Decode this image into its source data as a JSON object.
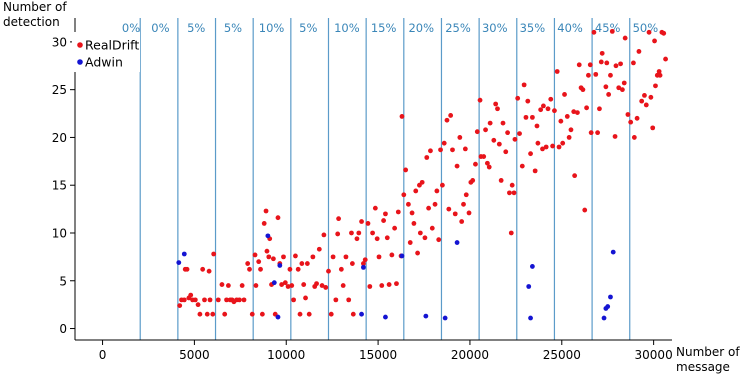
{
  "chart_data": {
    "type": "scatter",
    "xlabel": [
      "Number of",
      "message"
    ],
    "ylabel": [
      "Number of",
      "detection"
    ],
    "xlim": [
      -1500,
      31000
    ],
    "ylim": [
      -1.2,
      32.5
    ],
    "xticks": [
      0,
      5000,
      10000,
      15000,
      20000,
      25000,
      30000
    ],
    "xtick_labels": [
      "0",
      "5000",
      "10000",
      "15000",
      "20000",
      "25000",
      "30000"
    ],
    "yticks": [
      0,
      5,
      10,
      15,
      20,
      25,
      30
    ],
    "ytick_labels": [
      "0",
      "5",
      "10",
      "15",
      "20",
      "25",
      "30"
    ],
    "grid": false,
    "legend_position": "top-left",
    "colors": {
      "region_line": "#5b9bc9",
      "region_label": "#3a86b8",
      "axis": "#000000"
    },
    "regions": {
      "boundaries": [
        2050,
        4100,
        6150,
        8200,
        10250,
        12300,
        14350,
        16400,
        18450,
        20500,
        22550,
        24600,
        26650,
        28700
      ],
      "labels": [
        "0%",
        "0%",
        "5%",
        "5%",
        "10%",
        "5%",
        "10%",
        "15%",
        "20%",
        "25%",
        "30%",
        "35%",
        "40%",
        "45%",
        "50%"
      ],
      "label_x": [
        1550,
        3150,
        5100,
        7100,
        9200,
        11200,
        13300,
        15300,
        17350,
        19350,
        21350,
        23400,
        25450,
        27500,
        29550
      ]
    },
    "series": [
      {
        "name": "RealDrift",
        "color": "#e8141b",
        "points": [
          [
            4200,
            2.4
          ],
          [
            4300,
            3
          ],
          [
            4450,
            3
          ],
          [
            4500,
            6.2
          ],
          [
            4600,
            6.2
          ],
          [
            4700,
            3.2
          ],
          [
            4800,
            3.5
          ],
          [
            4900,
            3
          ],
          [
            5050,
            3
          ],
          [
            5200,
            2.5
          ],
          [
            5300,
            1.5
          ],
          [
            5450,
            6.2
          ],
          [
            5550,
            3
          ],
          [
            5700,
            1.5
          ],
          [
            5800,
            6
          ],
          [
            5850,
            3
          ],
          [
            6000,
            1.5
          ],
          [
            6050,
            7.8
          ],
          [
            6300,
            3
          ],
          [
            6500,
            4.6
          ],
          [
            6650,
            1.5
          ],
          [
            6750,
            3
          ],
          [
            6850,
            4.5
          ],
          [
            6950,
            3
          ],
          [
            7050,
            3
          ],
          [
            7150,
            2.8
          ],
          [
            7300,
            3
          ],
          [
            7450,
            3
          ],
          [
            7600,
            4.5
          ],
          [
            7700,
            3
          ],
          [
            7900,
            6.8
          ],
          [
            8000,
            6.2
          ],
          [
            8150,
            1.5
          ],
          [
            8300,
            7.7
          ],
          [
            8350,
            4.5
          ],
          [
            8500,
            7
          ],
          [
            8600,
            6.2
          ],
          [
            8700,
            1.5
          ],
          [
            8800,
            11
          ],
          [
            8900,
            12.3
          ],
          [
            8950,
            8.1
          ],
          [
            9050,
            7.5
          ],
          [
            9100,
            9.4
          ],
          [
            9200,
            4.6
          ],
          [
            9300,
            7.3
          ],
          [
            9400,
            1.5
          ],
          [
            9550,
            11.6
          ],
          [
            9650,
            6.8
          ],
          [
            9750,
            4.6
          ],
          [
            9850,
            7.5
          ],
          [
            9950,
            4.8
          ],
          [
            10100,
            4.4
          ],
          [
            10200,
            6.2
          ],
          [
            10300,
            4.5
          ],
          [
            10400,
            3
          ],
          [
            10500,
            7.6
          ],
          [
            10650,
            6.2
          ],
          [
            10750,
            1.5
          ],
          [
            10850,
            6.8
          ],
          [
            10950,
            4.6
          ],
          [
            11050,
            3.2
          ],
          [
            11150,
            6.8
          ],
          [
            11250,
            1.5
          ],
          [
            11450,
            7.5
          ],
          [
            11550,
            4.4
          ],
          [
            11650,
            4.7
          ],
          [
            11800,
            8.3
          ],
          [
            11950,
            4.5
          ],
          [
            12050,
            9.8
          ],
          [
            12150,
            4.3
          ],
          [
            12300,
            6
          ],
          [
            12450,
            1.5
          ],
          [
            12550,
            7.5
          ],
          [
            12700,
            3
          ],
          [
            12800,
            9.9
          ],
          [
            12850,
            11.5
          ],
          [
            13000,
            6.2
          ],
          [
            13100,
            4.5
          ],
          [
            13250,
            7.5
          ],
          [
            13400,
            3
          ],
          [
            13550,
            10
          ],
          [
            13600,
            6.8
          ],
          [
            13650,
            1.5
          ],
          [
            13850,
            9.4
          ],
          [
            13950,
            10
          ],
          [
            14100,
            11.2
          ],
          [
            14200,
            6.8
          ],
          [
            14300,
            7.2
          ],
          [
            14450,
            11
          ],
          [
            14550,
            4.4
          ],
          [
            14700,
            10
          ],
          [
            14850,
            12.6
          ],
          [
            14950,
            9.4
          ],
          [
            15050,
            7.5
          ],
          [
            15200,
            4.5
          ],
          [
            15300,
            11.3
          ],
          [
            15400,
            12
          ],
          [
            15500,
            9.5
          ],
          [
            15600,
            4.6
          ],
          [
            15750,
            7.7
          ],
          [
            15900,
            10.5
          ],
          [
            16000,
            4.7
          ],
          [
            16100,
            12.2
          ],
          [
            16250,
            7.6
          ],
          [
            16300,
            22.2
          ],
          [
            16400,
            14
          ],
          [
            16500,
            16.6
          ],
          [
            16650,
            13
          ],
          [
            16750,
            9
          ],
          [
            16850,
            12.1
          ],
          [
            16950,
            11
          ],
          [
            17050,
            14.4
          ],
          [
            17150,
            7.9
          ],
          [
            17250,
            15
          ],
          [
            17300,
            10
          ],
          [
            17400,
            15.3
          ],
          [
            17550,
            9.5
          ],
          [
            17650,
            17.9
          ],
          [
            17750,
            12.6
          ],
          [
            17850,
            18.6
          ],
          [
            17950,
            10.5
          ],
          [
            18100,
            13
          ],
          [
            18200,
            14.4
          ],
          [
            18300,
            9.3
          ],
          [
            18400,
            18.7
          ],
          [
            18500,
            15
          ],
          [
            18600,
            19.4
          ],
          [
            18750,
            21.8
          ],
          [
            18850,
            12.5
          ],
          [
            18950,
            22.3
          ],
          [
            19050,
            18.7
          ],
          [
            19200,
            12
          ],
          [
            19300,
            17
          ],
          [
            19450,
            20
          ],
          [
            19550,
            11.2
          ],
          [
            19650,
            13
          ],
          [
            19750,
            18.8
          ],
          [
            19800,
            14
          ],
          [
            19950,
            12.1
          ],
          [
            20050,
            15.3
          ],
          [
            20150,
            15.5
          ],
          [
            20300,
            17.2
          ],
          [
            20400,
            20.6
          ],
          [
            20550,
            23.9
          ],
          [
            20600,
            18
          ],
          [
            20750,
            18
          ],
          [
            20850,
            20.8
          ],
          [
            20950,
            17.3
          ],
          [
            21050,
            16.9
          ],
          [
            21100,
            21.5
          ],
          [
            21300,
            19.7
          ],
          [
            21400,
            23.5
          ],
          [
            21500,
            23
          ],
          [
            21600,
            19.3
          ],
          [
            21700,
            15.5
          ],
          [
            21800,
            21.5
          ],
          [
            21950,
            18.5
          ],
          [
            22050,
            20.5
          ],
          [
            22150,
            14.2
          ],
          [
            22250,
            10
          ],
          [
            22300,
            15
          ],
          [
            22400,
            14.2
          ],
          [
            22450,
            19.8
          ],
          [
            22600,
            24.1
          ],
          [
            22700,
            20.4
          ],
          [
            22850,
            17
          ],
          [
            22950,
            25.5
          ],
          [
            23050,
            22.1
          ],
          [
            23150,
            23.8
          ],
          [
            23300,
            18.3
          ],
          [
            23400,
            22.1
          ],
          [
            23550,
            16.5
          ],
          [
            23650,
            21.2
          ],
          [
            23700,
            19.4
          ],
          [
            23850,
            22.9
          ],
          [
            23950,
            18.8
          ],
          [
            24000,
            23.3
          ],
          [
            24150,
            19
          ],
          [
            24250,
            23
          ],
          [
            24400,
            24
          ],
          [
            24500,
            19.1
          ],
          [
            24600,
            22.8
          ],
          [
            24750,
            26.9
          ],
          [
            24850,
            19
          ],
          [
            24950,
            21.7
          ],
          [
            25050,
            19.4
          ],
          [
            25150,
            24.5
          ],
          [
            25300,
            22.2
          ],
          [
            25400,
            20
          ],
          [
            25500,
            20.8
          ],
          [
            25650,
            22.7
          ],
          [
            25700,
            16
          ],
          [
            25850,
            22.6
          ],
          [
            25950,
            27.6
          ],
          [
            26050,
            25.2
          ],
          [
            26150,
            25
          ],
          [
            26250,
            12.4
          ],
          [
            26350,
            23.1
          ],
          [
            26450,
            26.5
          ],
          [
            26550,
            27.6
          ],
          [
            26600,
            20.5
          ],
          [
            26750,
            31
          ],
          [
            26850,
            26.6
          ],
          [
            26950,
            20.5
          ],
          [
            27050,
            23
          ],
          [
            27150,
            27.9
          ],
          [
            27200,
            28.8
          ],
          [
            27400,
            25.3
          ],
          [
            27450,
            27.8
          ],
          [
            27550,
            24.5
          ],
          [
            27650,
            26.5
          ],
          [
            27750,
            31.1
          ],
          [
            27900,
            20.1
          ],
          [
            27950,
            27.5
          ],
          [
            28100,
            25.2
          ],
          [
            28200,
            27.7
          ],
          [
            28300,
            25
          ],
          [
            28400,
            25.7
          ],
          [
            28450,
            30.4
          ],
          [
            28600,
            22.4
          ],
          [
            28750,
            21.6
          ],
          [
            28900,
            27.8
          ],
          [
            28950,
            20
          ],
          [
            29100,
            22
          ],
          [
            29200,
            29
          ],
          [
            29350,
            23.8
          ],
          [
            29500,
            24.4
          ],
          [
            29600,
            23.4
          ],
          [
            29750,
            31
          ],
          [
            29850,
            24.2
          ],
          [
            29950,
            21
          ],
          [
            30050,
            30.1
          ],
          [
            30100,
            25.4
          ],
          [
            30200,
            26.5
          ],
          [
            30300,
            26.9
          ],
          [
            30350,
            26.5
          ],
          [
            30450,
            31
          ],
          [
            30550,
            30.9
          ],
          [
            30650,
            28.2
          ]
        ]
      },
      {
        "name": "Adwin",
        "color": "#1414d2",
        "points": [
          [
            4150,
            6.9
          ],
          [
            4450,
            7.8
          ],
          [
            9000,
            9.7
          ],
          [
            9350,
            4.8
          ],
          [
            9550,
            1.2
          ],
          [
            9650,
            6.6
          ],
          [
            14100,
            1.5
          ],
          [
            14200,
            6.4
          ],
          [
            15400,
            1.2
          ],
          [
            16300,
            7.6
          ],
          [
            17600,
            1.3
          ],
          [
            18650,
            1.1
          ],
          [
            19300,
            9
          ],
          [
            23200,
            4.4
          ],
          [
            23300,
            1.1
          ],
          [
            23400,
            6.5
          ],
          [
            27300,
            1.1
          ],
          [
            27400,
            2.1
          ],
          [
            27500,
            2.3
          ],
          [
            27650,
            3.3
          ],
          [
            27800,
            8
          ]
        ]
      }
    ]
  }
}
